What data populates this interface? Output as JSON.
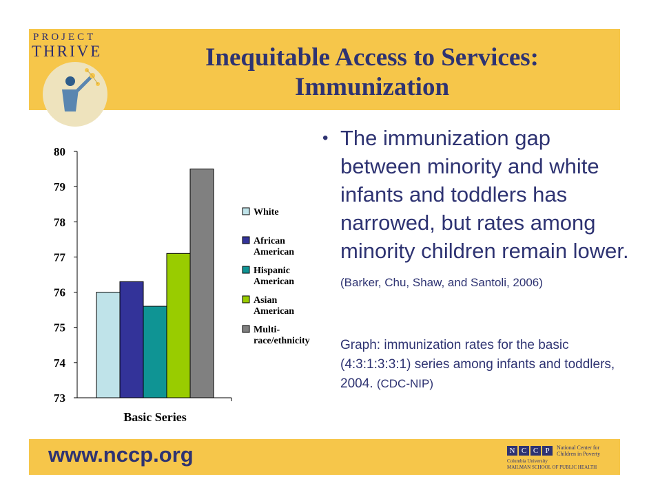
{
  "colors": {
    "accent_band": "#f6c64a",
    "text_blue": "#2e3372"
  },
  "logo": {
    "top": "PROJECT",
    "main": "THRIVE"
  },
  "title": {
    "line1": "Inequitable Access to Services:",
    "line2": "Immunization"
  },
  "bullet": {
    "main": "The immunization gap between minority and white infants and toddlers has narrowed, but rates among minority children remain lower.",
    "cite": "(Barker, Chu, Shaw, and Santoli, 2006)"
  },
  "graph_note": {
    "text": "Graph: immunization rates for the basic (4:3:1:3:3:1) series among infants and toddlers, 2004.",
    "cite": "(CDC-NIP)"
  },
  "footer": {
    "url": "www.nccp.org",
    "nccp_letters": [
      "N",
      "C",
      "C",
      "P"
    ],
    "nccp_name_1": "National Center for",
    "nccp_name_2": "Children in Poverty",
    "nccp_sub_1": "Columbia University",
    "nccp_sub_2": "MAILMAN SCHOOL OF PUBLIC HEALTH"
  },
  "chart_data": {
    "type": "bar",
    "title": "",
    "xlabel": "Basic Series",
    "ylabel": "",
    "ylim": [
      73,
      80
    ],
    "yticks": [
      73,
      74,
      75,
      76,
      77,
      78,
      79,
      80
    ],
    "categories": [
      "Basic Series"
    ],
    "series": [
      {
        "name": "White",
        "values": [
          76.0
        ],
        "color": "#bfe3e9"
      },
      {
        "name": "African American",
        "values": [
          76.3
        ],
        "color": "#333399"
      },
      {
        "name": "Hispanic American",
        "values": [
          75.6
        ],
        "color": "#0f9494"
      },
      {
        "name": "Asian American",
        "values": [
          77.1
        ],
        "color": "#99cc00"
      },
      {
        "name": "Multi-race/ethnicity",
        "values": [
          79.5
        ],
        "color": "#808080"
      }
    ],
    "legend": [
      {
        "lines": [
          "White"
        ]
      },
      {
        "lines": [
          "African",
          "American"
        ]
      },
      {
        "lines": [
          "Hispanic",
          "American"
        ]
      },
      {
        "lines": [
          "Asian",
          "American"
        ]
      },
      {
        "lines": [
          "Multi-",
          "race/ethnicity"
        ]
      }
    ],
    "legend_position": "right"
  }
}
